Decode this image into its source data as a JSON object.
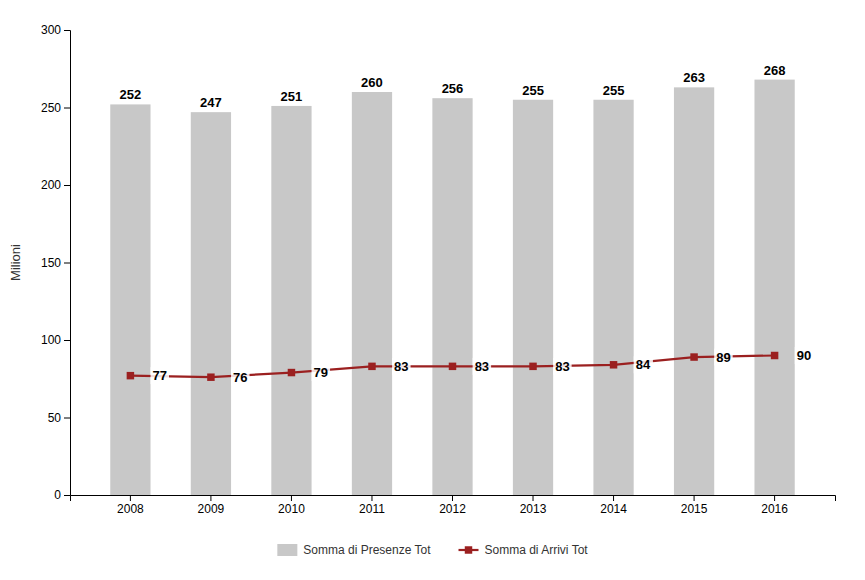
{
  "chart_data": {
    "type": "bar",
    "categories": [
      "2008",
      "2009",
      "2010",
      "2011",
      "2012",
      "2013",
      "2014",
      "2015",
      "2016"
    ],
    "series": [
      {
        "name": "Somma di Presenze Tot",
        "type": "bar",
        "color": "#c8c8c8",
        "values": [
          252,
          247,
          251,
          260,
          256,
          255,
          255,
          263,
          268
        ]
      },
      {
        "name": "Somma di Arrivi Tot",
        "type": "line",
        "color": "#9b2020",
        "marker": "square",
        "values": [
          77,
          76,
          79,
          83,
          83,
          83,
          84,
          89,
          90
        ]
      }
    ],
    "ylabel": "Milioni",
    "ylim": [
      0,
      300
    ],
    "yticks": [
      0,
      50,
      100,
      150,
      200,
      250,
      300
    ],
    "data_labels": true,
    "legend": "bottom",
    "grid": false
  }
}
